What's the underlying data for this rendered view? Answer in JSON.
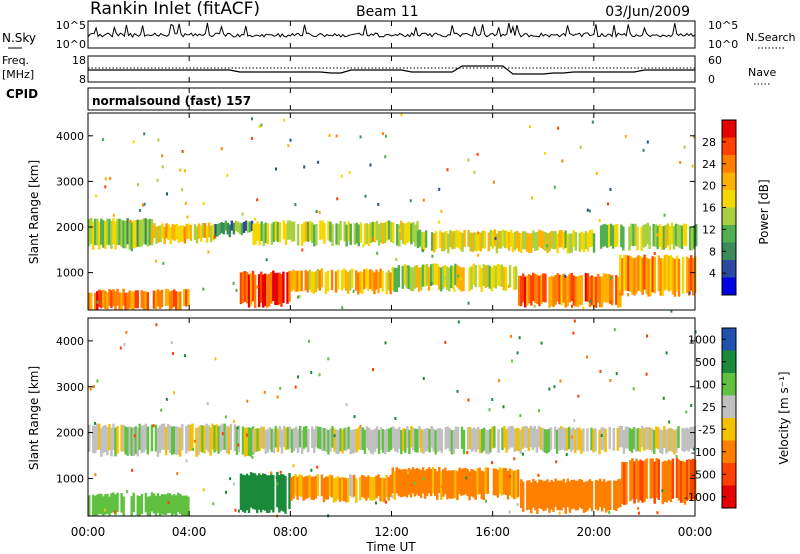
{
  "header": {
    "station": "Rankin Inlet (fitACF)",
    "beam": "Beam 11",
    "date": "03/Jun/2009"
  },
  "panels": {
    "nsky": {
      "left_label": "N.Sky",
      "right_label": "N.Search",
      "left_ticks": [
        "10^5",
        "10^0"
      ],
      "right_ticks": [
        "10^5",
        "10^0"
      ]
    },
    "freq": {
      "left_label_1": "Freq.",
      "left_label_2": "[MHz]",
      "right_label": "Nave",
      "left_ticks": [
        "18",
        "8"
      ],
      "right_ticks": [
        "60",
        "0"
      ]
    },
    "cpid": {
      "label": "CPID",
      "text": "normalsound (fast) 157"
    }
  },
  "colorbars": {
    "power": {
      "label": "Power [dB]",
      "ticks": [
        "28",
        "24",
        "20",
        "16",
        "12",
        "8",
        "4"
      ],
      "colors": [
        "#e60000",
        "#ff4000",
        "#ff8000",
        "#ffb000",
        "#f5d800",
        "#a8d040",
        "#50b050",
        "#3a8a5a",
        "#2a4aa0",
        "#0000e0"
      ]
    },
    "velocity": {
      "label": "Velocity [m s⁻¹]",
      "ticks": [
        "1000",
        "500",
        "100",
        "25",
        "-25",
        "-100",
        "-500",
        "-1000"
      ],
      "colors": [
        "#2050b0",
        "#1a8a3a",
        "#60c040",
        "#c0c0c0",
        "#f5c000",
        "#ff8000",
        "#ff4000",
        "#e60000"
      ]
    }
  },
  "chart_data": [
    {
      "type": "heatmap",
      "name": "power",
      "ylabel": "Slant Range [km]",
      "xlabel": "Time UT",
      "x_ticks": [
        "00:00",
        "04:00",
        "08:00",
        "12:00",
        "16:00",
        "20:00",
        "00:00"
      ],
      "y_ticks": [
        1000,
        2000,
        3000,
        4000
      ],
      "xlim_hours": [
        0,
        24
      ],
      "ylim_km": [
        180,
        4500
      ],
      "unit": "dB",
      "bands": [
        {
          "t0": 0.0,
          "t1": 2.5,
          "r0": 1550,
          "r1": 2150,
          "v": 14
        },
        {
          "t0": 2.5,
          "t1": 5.0,
          "r0": 1700,
          "r1": 2050,
          "v": 18
        },
        {
          "t0": 5.0,
          "t1": 6.5,
          "r0": 1850,
          "r1": 2100,
          "v": 10
        },
        {
          "t0": 6.5,
          "t1": 13.0,
          "r0": 1650,
          "r1": 2100,
          "v": 15
        },
        {
          "t0": 13.0,
          "t1": 20.0,
          "r0": 1500,
          "r1": 1900,
          "v": 17
        },
        {
          "t0": 20.0,
          "t1": 24.0,
          "r0": 1550,
          "r1": 2050,
          "v": 15
        },
        {
          "t0": 0.0,
          "t1": 4.0,
          "r0": 200,
          "r1": 600,
          "v": 24
        },
        {
          "t0": 6.0,
          "t1": 8.0,
          "r0": 300,
          "r1": 1000,
          "v": 27
        },
        {
          "t0": 8.0,
          "t1": 12.0,
          "r0": 600,
          "r1": 1050,
          "v": 20
        },
        {
          "t0": 12.0,
          "t1": 17.0,
          "r0": 650,
          "r1": 1150,
          "v": 16
        },
        {
          "t0": 17.0,
          "t1": 21.0,
          "r0": 300,
          "r1": 950,
          "v": 24
        },
        {
          "t0": 21.0,
          "t1": 24.0,
          "r0": 550,
          "r1": 1350,
          "v": 22
        }
      ]
    },
    {
      "type": "heatmap",
      "name": "velocity",
      "ylabel": "Slant Range [km]",
      "xlabel": "Time UT",
      "x_ticks": [
        "00:00",
        "04:00",
        "08:00",
        "12:00",
        "16:00",
        "20:00",
        "00:00"
      ],
      "y_ticks": [
        1000,
        2000,
        3000,
        4000
      ],
      "xlim_hours": [
        0,
        24
      ],
      "ylim_km": [
        180,
        4500
      ],
      "unit": "m s-1",
      "bands": [
        {
          "t0": 0.0,
          "t1": 6.5,
          "r0": 1550,
          "r1": 2150,
          "v": 0
        },
        {
          "t0": 6.5,
          "t1": 24.0,
          "r0": 1600,
          "r1": 2100,
          "v": 0
        },
        {
          "t0": 0.0,
          "t1": 4.0,
          "r0": 200,
          "r1": 650,
          "v": 150
        },
        {
          "t0": 6.0,
          "t1": 8.0,
          "r0": 300,
          "r1": 1100,
          "v": 600
        },
        {
          "t0": 8.0,
          "t1": 12.0,
          "r0": 550,
          "r1": 1050,
          "v": -150
        },
        {
          "t0": 12.0,
          "t1": 17.0,
          "r0": 600,
          "r1": 1200,
          "v": -200
        },
        {
          "t0": 17.0,
          "t1": 21.0,
          "r0": 300,
          "r1": 950,
          "v": -250
        },
        {
          "t0": 21.0,
          "t1": 24.0,
          "r0": 500,
          "r1": 1400,
          "v": -300
        }
      ]
    }
  ]
}
